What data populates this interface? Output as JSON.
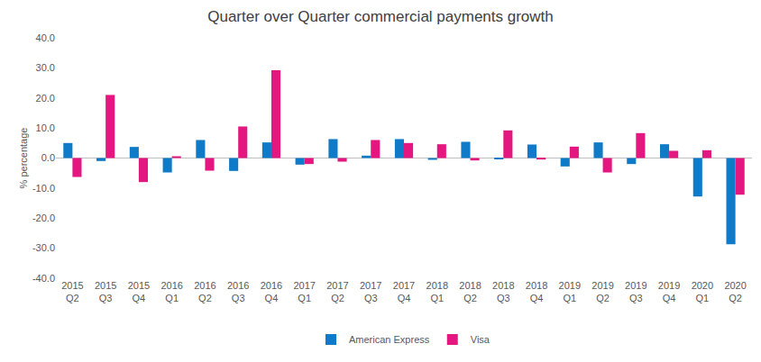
{
  "chart_data": {
    "type": "bar",
    "title": "Quarter over Quarter commercial payments growth",
    "y_label": "% percentage",
    "categories": [
      "2015 Q2",
      "2015 Q3",
      "2015 Q4",
      "2016 Q1",
      "2016 Q2",
      "2016 Q3",
      "2016 Q4",
      "2017 Q1",
      "2017 Q2",
      "2017 Q3",
      "2017 Q4",
      "2018 Q1",
      "2018 Q2",
      "2018 Q3",
      "2018 Q4",
      "2019 Q1",
      "2019 Q2",
      "2019 Q3",
      "2019 Q4",
      "2020 Q1",
      "2020 Q2"
    ],
    "series": [
      {
        "name": "American Express",
        "color": "#0f7bc8",
        "values": [
          5.0,
          -1.0,
          3.7,
          -4.8,
          6.0,
          -4.3,
          5.2,
          -2.2,
          6.3,
          0.8,
          6.3,
          -0.6,
          5.4,
          -0.3,
          4.5,
          -2.8,
          5.2,
          -2.0,
          4.6,
          -12.8,
          -28.7
        ]
      },
      {
        "name": "Visa",
        "color": "#e3177f",
        "values": [
          -6.3,
          21.0,
          -8.0,
          0.6,
          -4.2,
          10.5,
          29.2,
          -2.0,
          -1.2,
          6.0,
          5.0,
          4.6,
          -0.8,
          9.2,
          -0.5,
          3.8,
          -4.8,
          8.3,
          2.4,
          2.6,
          -12.2
        ]
      }
    ],
    "ylim": [
      -40,
      40
    ],
    "yticks": [
      {
        "value": -40,
        "label": "-40.0"
      },
      {
        "value": -30,
        "label": "-30.0"
      },
      {
        "value": -20,
        "label": "-20.0"
      },
      {
        "value": -10,
        "label": "-10.0"
      },
      {
        "value": 0,
        "label": "0.0"
      },
      {
        "value": 10,
        "label": "10.0"
      },
      {
        "value": 20,
        "label": "20.0"
      },
      {
        "value": 30,
        "label": "30.0"
      },
      {
        "value": 40,
        "label": "40.0"
      }
    ],
    "grid": false,
    "legend": "bottom"
  }
}
